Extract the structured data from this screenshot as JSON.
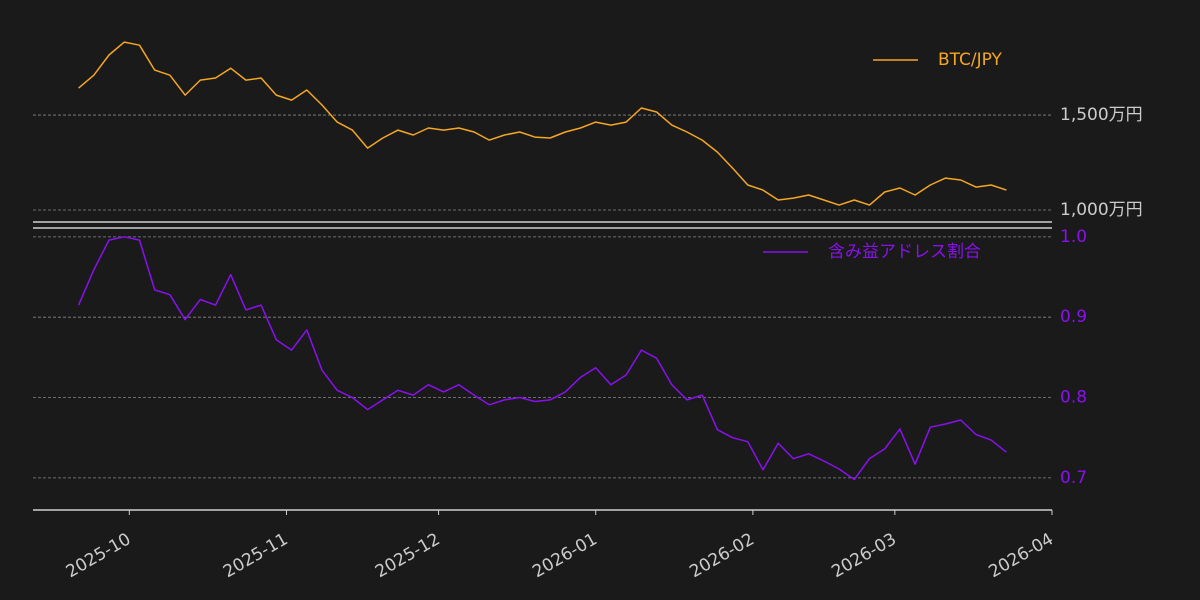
{
  "chart_data": [
    {
      "type": "line",
      "ylim": [
        9370000,
        19900000
      ],
      "yticks": [
        {
          "value": 10000000,
          "label": "1,000万円"
        },
        {
          "value": 15000000,
          "label": "1,500万円"
        }
      ],
      "ytick_color": "#cccccc",
      "grid": true,
      "legend": "upper right",
      "xlim": [
        "2025-09-12",
        "2026-04-01"
      ],
      "x": [
        "2025-09-21",
        "2025-09-24",
        "2025-09-27",
        "2025-09-30",
        "2025-10-03",
        "2025-10-06",
        "2025-10-09",
        "2025-10-12",
        "2025-10-15",
        "2025-10-18",
        "2025-10-21",
        "2025-10-24",
        "2025-10-27",
        "2025-10-30",
        "2025-11-02",
        "2025-11-05",
        "2025-11-08",
        "2025-11-11",
        "2025-11-14",
        "2025-11-17",
        "2025-11-20",
        "2025-11-23",
        "2025-11-26",
        "2025-11-29",
        "2025-12-02",
        "2025-12-05",
        "2025-12-08",
        "2025-12-11",
        "2025-12-14",
        "2025-12-17",
        "2025-12-20",
        "2025-12-23",
        "2025-12-26",
        "2025-12-29",
        "2026-01-01",
        "2026-01-04",
        "2026-01-07",
        "2026-01-10",
        "2026-01-13",
        "2026-01-16",
        "2026-01-19",
        "2026-01-22",
        "2026-01-25",
        "2026-01-28",
        "2026-01-31",
        "2026-02-03",
        "2026-02-06",
        "2026-02-09",
        "2026-02-12",
        "2026-02-15",
        "2026-02-18",
        "2026-02-21",
        "2026-02-24",
        "2026-02-27",
        "2026-03-02",
        "2026-03-05",
        "2026-03-08",
        "2026-03-11",
        "2026-03-14",
        "2026-03-17",
        "2026-03-20",
        "2026-03-23"
      ],
      "series": [
        {
          "name": "BTC/JPY",
          "color": "#f5a623",
          "values": [
            16420000,
            17100000,
            18160000,
            18840000,
            18680000,
            17370000,
            17100000,
            16050000,
            16840000,
            16950000,
            17470000,
            16840000,
            16950000,
            16050000,
            15790000,
            16320000,
            15530000,
            14630000,
            14210000,
            13260000,
            13790000,
            14210000,
            13950000,
            14320000,
            14210000,
            14320000,
            14110000,
            13680000,
            13950000,
            14110000,
            13840000,
            13790000,
            14110000,
            14320000,
            14630000,
            14470000,
            14630000,
            15370000,
            15160000,
            14470000,
            14110000,
            13680000,
            13050000,
            12210000,
            11320000,
            11050000,
            10530000,
            10630000,
            10790000,
            10530000,
            10260000,
            10530000,
            10260000,
            10950000,
            11160000,
            10790000,
            11320000,
            11680000,
            11580000,
            11210000,
            11320000,
            11050000
          ]
        }
      ]
    },
    {
      "type": "line",
      "ylim": [
        0.66,
        1.011
      ],
      "yticks": [
        0.7,
        0.8,
        0.9,
        {
          "value": 1,
          "label": "1.0"
        }
      ],
      "ytick_color": "#8a10f0",
      "grid": true,
      "legend": "upper right",
      "xlim": [
        "2025-09-12",
        "2026-04-01"
      ],
      "xticks": [
        "2025-10",
        "2025-11",
        "2025-12",
        "2026-01",
        "2026-02",
        "2026-03",
        "2026-04"
      ],
      "x": [
        "2025-09-21",
        "2025-09-24",
        "2025-09-27",
        "2025-09-30",
        "2025-10-03",
        "2025-10-06",
        "2025-10-09",
        "2025-10-12",
        "2025-10-15",
        "2025-10-18",
        "2025-10-21",
        "2025-10-24",
        "2025-10-27",
        "2025-10-30",
        "2025-11-02",
        "2025-11-05",
        "2025-11-08",
        "2025-11-11",
        "2025-11-14",
        "2025-11-17",
        "2025-11-20",
        "2025-11-23",
        "2025-11-26",
        "2025-11-29",
        "2025-12-02",
        "2025-12-05",
        "2025-12-08",
        "2025-12-11",
        "2025-12-14",
        "2025-12-17",
        "2025-12-20",
        "2025-12-23",
        "2025-12-26",
        "2025-12-29",
        "2026-01-01",
        "2026-01-04",
        "2026-01-07",
        "2026-01-10",
        "2026-01-13",
        "2026-01-16",
        "2026-01-19",
        "2026-01-22",
        "2026-01-25",
        "2026-01-28",
        "2026-01-31",
        "2026-02-03",
        "2026-02-06",
        "2026-02-09",
        "2026-02-12",
        "2026-02-15",
        "2026-02-18",
        "2026-02-21",
        "2026-02-24",
        "2026-02-27",
        "2026-03-02",
        "2026-03-05",
        "2026-03-08",
        "2026-03-11",
        "2026-03-14",
        "2026-03-17",
        "2026-03-20",
        "2026-03-23"
      ],
      "series": [
        {
          "name": "含み益アドレス割合",
          "color": "#8a10f0",
          "values": [
            0.915,
            0.959,
            0.996,
            1.0,
            0.996,
            0.934,
            0.928,
            0.897,
            0.922,
            0.915,
            0.953,
            0.909,
            0.915,
            0.872,
            0.859,
            0.884,
            0.834,
            0.809,
            0.8,
            0.785,
            0.797,
            0.809,
            0.803,
            0.816,
            0.807,
            0.816,
            0.803,
            0.791,
            0.797,
            0.8,
            0.795,
            0.797,
            0.807,
            0.825,
            0.837,
            0.816,
            0.828,
            0.859,
            0.849,
            0.816,
            0.797,
            0.803,
            0.76,
            0.75,
            0.745,
            0.71,
            0.743,
            0.724,
            0.73,
            0.721,
            0.711,
            0.698,
            0.724,
            0.736,
            0.761,
            0.717,
            0.763,
            0.767,
            0.772,
            0.754,
            0.747,
            0.732
          ]
        }
      ]
    }
  ]
}
